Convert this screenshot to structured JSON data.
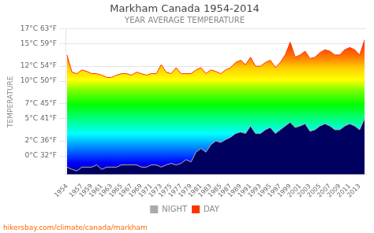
{
  "chart_data": {
    "type": "area",
    "title": "Markham Canada 1954-2014",
    "subtitle": "YEAR AVERAGE TEMPERATURE",
    "ylabel": "TEMPERATURE",
    "annotations": [
      "hikersbay.com/climate/canada/markham"
    ],
    "x": [
      1954,
      1955,
      1956,
      1957,
      1958,
      1959,
      1960,
      1961,
      1962,
      1963,
      1964,
      1965,
      1966,
      1967,
      1968,
      1969,
      1970,
      1971,
      1972,
      1973,
      1974,
      1975,
      1976,
      1977,
      1978,
      1979,
      1980,
      1981,
      1982,
      1983,
      1984,
      1985,
      1986,
      1987,
      1988,
      1989,
      1990,
      1991,
      1992,
      1993,
      1994,
      1995,
      1996,
      1997,
      1998,
      1999,
      2000,
      2001,
      2002,
      2003,
      2004,
      2005,
      2006,
      2007,
      2008,
      2009,
      2010,
      2011,
      2012,
      2013,
      2014
    ],
    "series": [
      {
        "name": "NIGHT",
        "color": "#aaaaaa",
        "values": [
          -1.5,
          -1.8,
          -2.0,
          -1.5,
          -1.5,
          -1.5,
          -1.2,
          -1.8,
          -1.5,
          -1.5,
          -1.5,
          -1.2,
          -1.2,
          -1.2,
          -1.2,
          -1.5,
          -1.5,
          -1.2,
          -1.2,
          -1.5,
          -1.2,
          -1.0,
          -1.2,
          -1.0,
          -0.5,
          -0.8,
          0.5,
          1.0,
          0.5,
          1.5,
          2.0,
          1.8,
          2.2,
          2.5,
          3.0,
          3.2,
          3.0,
          4.0,
          3.0,
          3.0,
          3.5,
          3.8,
          3.0,
          3.5,
          4.0,
          4.5,
          3.8,
          4.0,
          4.3,
          3.3,
          3.5,
          4.0,
          4.3,
          4.0,
          3.5,
          3.5,
          4.0,
          4.3,
          4.0,
          3.5,
          5.0
        ]
      },
      {
        "name": "DAY",
        "color": "#ff3300",
        "values": [
          13.5,
          11.2,
          11.0,
          11.5,
          11.3,
          11.0,
          11.0,
          10.8,
          10.5,
          10.5,
          10.8,
          11.0,
          11.0,
          10.8,
          11.2,
          11.0,
          10.8,
          11.0,
          11.0,
          12.2,
          11.2,
          11.0,
          11.8,
          11.0,
          11.0,
          11.0,
          11.5,
          11.8,
          11.0,
          11.5,
          11.3,
          11.0,
          11.5,
          11.8,
          12.5,
          12.8,
          12.2,
          13.2,
          12.0,
          12.0,
          12.5,
          12.8,
          11.8,
          12.5,
          13.5,
          15.2,
          13.2,
          13.5,
          14.0,
          13.0,
          13.2,
          13.8,
          14.2,
          14.0,
          13.5,
          13.5,
          14.2,
          14.5,
          14.2,
          13.5,
          15.5
        ]
      }
    ],
    "xlim": [
      1953.7,
      2014.3
    ],
    "xticks": [
      1954,
      1957,
      1959,
      1961,
      1963,
      1965,
      1967,
      1969,
      1971,
      1973,
      1975,
      1977,
      1979,
      1981,
      1983,
      1985,
      1987,
      1989,
      1991,
      1993,
      1995,
      1997,
      1999,
      2001,
      2003,
      2005,
      2007,
      2009,
      2011,
      2013
    ],
    "ylim": [
      -2.5,
      17.0
    ],
    "yticks": [
      {
        "value": 0,
        "label": "0°C 32°F"
      },
      {
        "value": 2,
        "label": "2°C 36°F"
      },
      {
        "value": 5,
        "label": "5°C 41°F"
      },
      {
        "value": 7,
        "label": "7°C 45°F"
      },
      {
        "value": 10,
        "label": "10°C 50°F"
      },
      {
        "value": 12,
        "label": "12°C 54°F"
      },
      {
        "value": 15,
        "label": "15°C 59°F"
      },
      {
        "value": 17,
        "label": "17°C 63°F"
      }
    ],
    "grid": true,
    "legend": "bottom"
  }
}
